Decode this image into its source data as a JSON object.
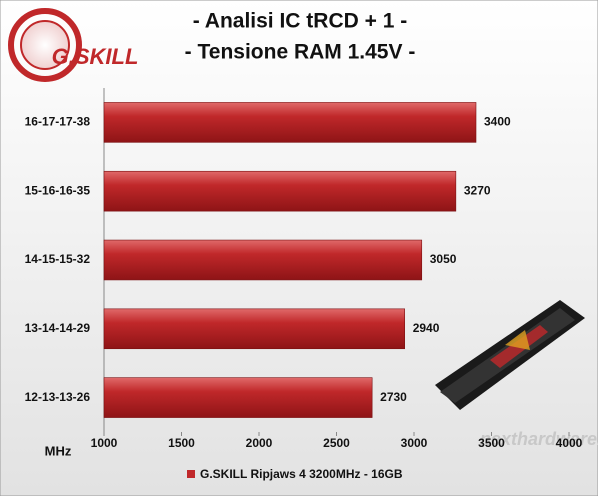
{
  "logo": "G.SKILL",
  "chart_data": {
    "type": "hbar",
    "title": "- Analisi IC  tRCD + 1 -",
    "subtitle": "- Tensione RAM 1.45V -",
    "x_label": "MHz",
    "categories": [
      "16-17-17-38",
      "15-16-16-35",
      "14-15-15-32",
      "13-14-14-29",
      "12-13-13-26"
    ],
    "series": [
      {
        "name": "G.SKILL Ripjaws 4 3200MHz - 16GB",
        "color": "#c0282a",
        "values": [
          3400,
          3270,
          3050,
          2940,
          2730
        ]
      }
    ],
    "xlim": [
      1000,
      4000
    ],
    "xticks": [
      1000,
      1500,
      2000,
      2500,
      3000,
      3500,
      4000
    ]
  }
}
